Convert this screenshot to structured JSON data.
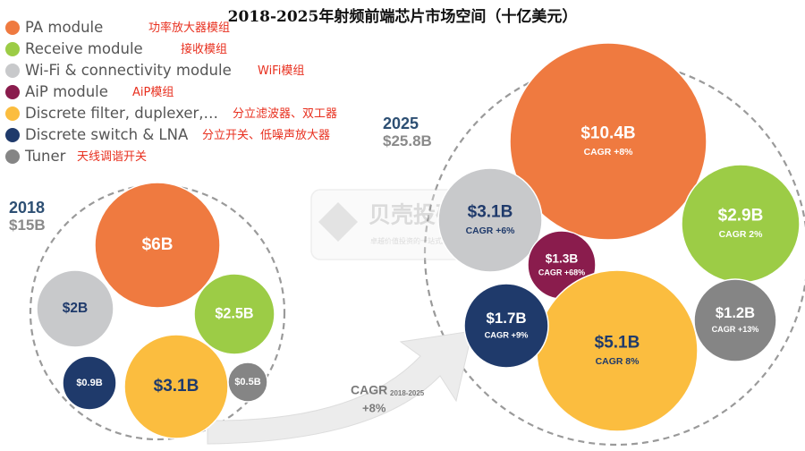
{
  "colors": {
    "pa": "#ef7a40",
    "receive": "#9ccc46",
    "wifi": "#c8c9cb",
    "aip": "#8a1c4d",
    "filter": "#fbbd3f",
    "switch": "#1f3a6b",
    "tuner": "#858585"
  },
  "chart_data": {
    "type": "bubble",
    "title": "2018-2025年射频前端芯片市场空间（十亿美元）",
    "legend": [
      {
        "key": "pa",
        "en": "PA module",
        "zh": "功率放大器模组"
      },
      {
        "key": "receive",
        "en": "Receive module",
        "zh": "接收模组"
      },
      {
        "key": "wifi",
        "en": "Wi-Fi & connectivity module",
        "zh": "WiFi模组"
      },
      {
        "key": "aip",
        "en": "AiP module",
        "zh": "AiP模组"
      },
      {
        "key": "filter",
        "en": "Discrete filter, duplexer,…",
        "zh": "分立滤波器、双工器"
      },
      {
        "key": "switch",
        "en": "Discrete switch & LNA",
        "zh": "分立开关、低噪声放大器"
      },
      {
        "key": "tuner",
        "en": "Tuner",
        "zh": "天线调谐开关"
      }
    ],
    "groups": [
      {
        "year": "2018",
        "total_label": "$15B",
        "bubbles": [
          {
            "key": "pa",
            "value": 6,
            "label": "$6B"
          },
          {
            "key": "receive",
            "value": 2.5,
            "label": "$2.5B"
          },
          {
            "key": "wifi",
            "value": 2,
            "label": "$2B"
          },
          {
            "key": "filter",
            "value": 3.1,
            "label": "$3.1B"
          },
          {
            "key": "switch",
            "value": 0.9,
            "label": "$0.9B"
          },
          {
            "key": "tuner",
            "value": 0.5,
            "label": "$0.5B"
          }
        ]
      },
      {
        "year": "2025",
        "total_label": "$25.8B",
        "bubbles": [
          {
            "key": "pa",
            "value": 10.4,
            "label": "$10.4B",
            "cagr": "CAGR +8%"
          },
          {
            "key": "receive",
            "value": 2.9,
            "label": "$2.9B",
            "cagr": "CAGR 2%"
          },
          {
            "key": "wifi",
            "value": 3.1,
            "label": "$3.1B",
            "cagr": "CAGR +6%"
          },
          {
            "key": "aip",
            "value": 1.3,
            "label": "$1.3B",
            "cagr": "CAGR +68%"
          },
          {
            "key": "filter",
            "value": 5.1,
            "label": "$5.1B",
            "cagr": "CAGR 8%"
          },
          {
            "key": "switch",
            "value": 1.7,
            "label": "$1.7B",
            "cagr": "CAGR +9%"
          },
          {
            "key": "tuner",
            "value": 1.2,
            "label": "$1.2B",
            "cagr": "CAGR +13%"
          }
        ]
      }
    ],
    "overall_cagr": {
      "label": "CAGR",
      "period": "2018-2025",
      "value": "+8%"
    },
    "watermark": {
      "text": "贝壳投研",
      "subtext": "卓越价值投资的一站式服务"
    }
  }
}
